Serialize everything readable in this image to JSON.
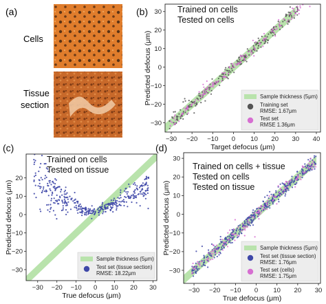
{
  "figure": {
    "panel_a": {
      "letter": "(a)",
      "row_labels": [
        "Cells",
        "Tissue\nsection"
      ],
      "image_descriptions": [
        "brightfield image of cells",
        "brightfield image of tissue section"
      ]
    }
  },
  "chart_data": [
    {
      "id": "b",
      "letter": "(b)",
      "type": "scatter",
      "title_lines": [
        "Trained on cells",
        "Tested on cells"
      ],
      "xlabel": "Target defocus (μm)",
      "ylabel": "Predicted defocus (μm)",
      "xlim": [
        -33,
        42
      ],
      "ylim": [
        -35,
        34
      ],
      "xticks": [
        -30,
        -20,
        -10,
        0,
        10,
        20,
        30,
        40
      ],
      "yticks": [
        -30,
        -20,
        -10,
        0,
        10,
        20,
        30
      ],
      "band": {
        "label": "Sample thickness (5μm)",
        "half_width": 2.5,
        "range": [
          -33,
          30
        ],
        "color": "#b9e3ac"
      },
      "legend": {
        "placement": "lower-right",
        "entries": [
          {
            "kind": "band",
            "label": "Sample thickness (5μm)",
            "color": "#b9e3ac"
          },
          {
            "kind": "marker",
            "label": "Training set",
            "sub": "RMSE: 1.67μm",
            "color": "#555555"
          },
          {
            "kind": "marker",
            "label": "Test set",
            "sub": "RMSE 1.36μm",
            "color": "#d66fd1"
          }
        ]
      },
      "series": [
        {
          "name": "Training set",
          "color": "#555555",
          "model": {
            "slope": 1,
            "intercept": 0,
            "x": [
              -31,
              31
            ],
            "spread": 1.67,
            "n": 240
          }
        },
        {
          "name": "Test set",
          "color": "#d66fd1",
          "model": {
            "slope": 1,
            "intercept": 0,
            "x": [
              -31,
              38
            ],
            "spread": 1.36,
            "n": 170
          }
        }
      ]
    },
    {
      "id": "c",
      "letter": "(c)",
      "type": "scatter",
      "title_lines": [
        "Trained on cells",
        "Tested on tissue"
      ],
      "xlabel": "True defocus (μm)",
      "ylabel": "Predicted defocus (μm)",
      "xlim": [
        -36,
        32
      ],
      "ylim": [
        -36,
        33
      ],
      "xticks": [
        -30,
        -20,
        -10,
        0,
        10,
        20,
        30
      ],
      "yticks": [
        -30,
        -20,
        -10,
        0,
        10,
        20
      ],
      "band": {
        "label": "Sample thickness (5μm)",
        "half_width": 2.5,
        "range": [
          -36,
          32
        ],
        "color": "#b9e3ac"
      },
      "legend": {
        "placement": "lower-right",
        "entries": [
          {
            "kind": "band",
            "label": "Sample thickness (5μm)",
            "color": "#b9e3ac"
          },
          {
            "kind": "marker",
            "label": "Test set (tissue section)",
            "sub": "RMSE: 18.22μm",
            "color": "#3f48a8"
          }
        ]
      },
      "series": [
        {
          "name": "Test set (tissue section)",
          "color": "#3f48a8",
          "curve": {
            "x": [
              -32,
              -28,
              -24,
              -20,
              -16,
              -12,
              -8,
              -4,
              0,
              4,
              8,
              12,
              16,
              20,
              24,
              28
            ],
            "y": [
              22,
              16,
              13,
              11,
              8.5,
              6,
              4,
              2.5,
              2,
              3,
              5,
              7,
              10,
              12,
              14,
              16
            ],
            "spread": [
              8,
              7,
              6,
              5,
              4,
              3,
              2,
              1.5,
              1.2,
              1.5,
              2,
              2.5,
              3,
              3,
              3.5,
              3.5
            ],
            "n": 420
          }
        }
      ]
    },
    {
      "id": "d",
      "letter": "(d)",
      "type": "scatter",
      "title_lines": [
        "Trained on cells + tissue",
        "Tested on cells",
        "Tested on tissue"
      ],
      "xlabel": "True defocus (μm)",
      "ylabel": "Predicted defocus (μm)",
      "xlim": [
        -35,
        31
      ],
      "ylim": [
        -37,
        33
      ],
      "xticks": [
        -30,
        -20,
        -10,
        0,
        10,
        20,
        30
      ],
      "yticks": [
        -30,
        -20,
        -10,
        0,
        10,
        20,
        30
      ],
      "band": {
        "label": "Sample thickness (5μm)",
        "half_width": 2.5,
        "range": [
          -35,
          29
        ],
        "color": "#b9e3ac"
      },
      "legend": {
        "placement": "lower-right",
        "entries": [
          {
            "kind": "band",
            "label": "Sample thickness (5μm)",
            "color": "#b9e3ac"
          },
          {
            "kind": "marker",
            "label": "Test set (tissue section)",
            "sub": "RMSE: 1.76μm",
            "color": "#3f48a8"
          },
          {
            "kind": "marker",
            "label": "Test set (cells)",
            "sub": "RMSE: 1.75μm",
            "color": "#d66fd1"
          }
        ]
      },
      "series": [
        {
          "name": "Test set (tissue section)",
          "color": "#3f48a8",
          "model": {
            "slope": 1,
            "intercept": 0,
            "x": [
              -31,
              29
            ],
            "spread": 1.76,
            "n": 420
          }
        },
        {
          "name": "Test set (cells)",
          "color": "#d66fd1",
          "model": {
            "slope": 1,
            "intercept": 0,
            "x": [
              -31,
              29
            ],
            "spread": 1.75,
            "n": 160
          }
        }
      ]
    }
  ]
}
